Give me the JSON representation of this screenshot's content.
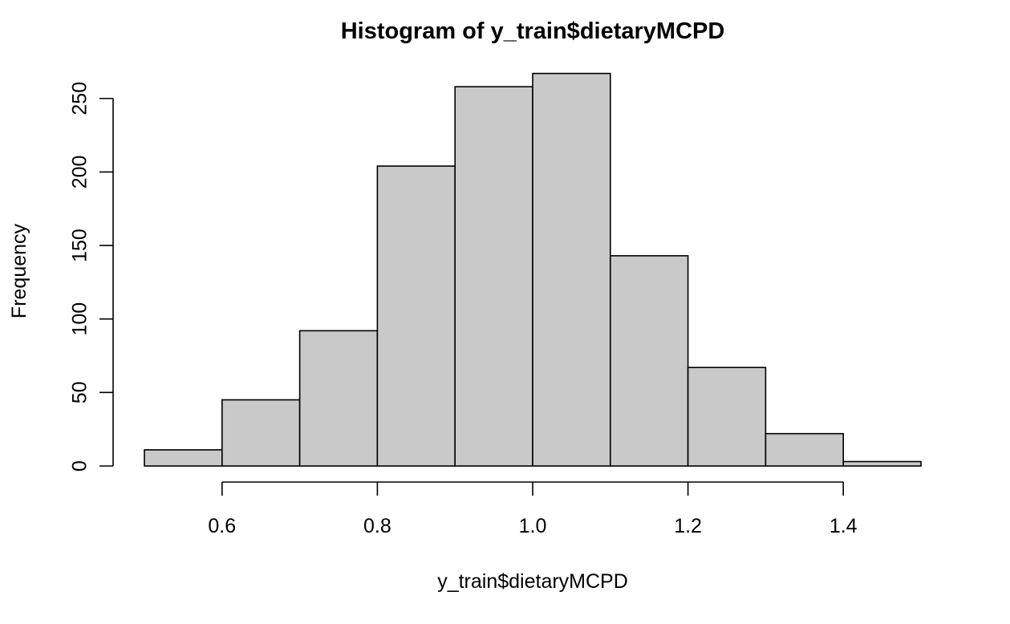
{
  "chart_data": {
    "type": "bar",
    "subtype": "histogram",
    "title": "Histogram of y_train$dietaryMCPD",
    "xlabel": "y_train$dietaryMCPD",
    "ylabel": "Frequency",
    "bins": [
      {
        "x0": 0.5,
        "x1": 0.6,
        "value": 11
      },
      {
        "x0": 0.6,
        "x1": 0.7,
        "value": 45
      },
      {
        "x0": 0.7,
        "x1": 0.8,
        "value": 92
      },
      {
        "x0": 0.8,
        "x1": 0.9,
        "value": 204
      },
      {
        "x0": 0.9,
        "x1": 1.0,
        "value": 258
      },
      {
        "x0": 1.0,
        "x1": 1.1,
        "value": 267
      },
      {
        "x0": 1.1,
        "x1": 1.2,
        "value": 143
      },
      {
        "x0": 1.2,
        "x1": 1.3,
        "value": 67
      },
      {
        "x0": 1.3,
        "x1": 1.4,
        "value": 22
      },
      {
        "x0": 1.4,
        "x1": 1.5,
        "value": 3
      }
    ],
    "xlim": [
      0.5,
      1.5
    ],
    "ylim": [
      0,
      267
    ],
    "x_ticks": [
      0.6,
      0.8,
      1.0,
      1.2,
      1.4
    ],
    "x_tick_labels": [
      "0.6",
      "0.8",
      "1.0",
      "1.2",
      "1.4"
    ],
    "y_ticks": [
      0,
      50,
      100,
      150,
      200,
      250
    ],
    "y_tick_labels": [
      "0",
      "50",
      "100",
      "150",
      "200",
      "250"
    ],
    "bar_fill": "#c9c9c9",
    "bar_stroke": "#000000",
    "grid": false,
    "legend": "none"
  }
}
